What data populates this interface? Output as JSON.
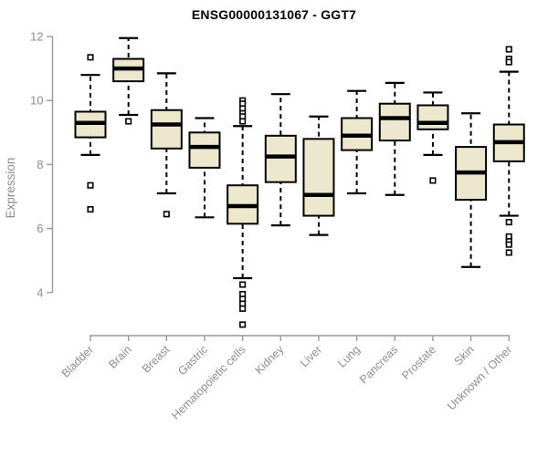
{
  "chart_data": {
    "type": "boxplot",
    "title": "ENSG00000131067 - GGT7",
    "ylabel": "Expression",
    "xlabel": "",
    "ylim": [
      4,
      12
    ],
    "yticks": [
      12,
      10,
      8,
      6,
      4
    ],
    "grid": false,
    "legend": false,
    "label_rotation_deg": 45,
    "categories": [
      "Bladder",
      "Brain",
      "Breast",
      "Gastric",
      "Hematopoietic cells",
      "Kidney",
      "Liver",
      "Lung",
      "Pancreas",
      "Prostate",
      "Skin",
      "Unknown / Other"
    ],
    "boxes": [
      {
        "category": "Bladder",
        "whisker_low": 8.3,
        "q1": 8.85,
        "median": 9.3,
        "q3": 9.65,
        "whisker_high": 10.8,
        "outliers": [
          11.35,
          7.35,
          6.6
        ]
      },
      {
        "category": "Brain",
        "whisker_low": 9.55,
        "q1": 10.6,
        "median": 11.0,
        "q3": 11.3,
        "whisker_high": 11.95,
        "outliers": [
          9.35
        ]
      },
      {
        "category": "Breast",
        "whisker_low": 7.1,
        "q1": 8.5,
        "median": 9.25,
        "q3": 9.7,
        "whisker_high": 10.85,
        "outliers": [
          6.45
        ]
      },
      {
        "category": "Gastric",
        "whisker_low": 6.35,
        "q1": 7.9,
        "median": 8.55,
        "q3": 9.0,
        "whisker_high": 9.45,
        "outliers": []
      },
      {
        "category": "Hematopoietic cells",
        "whisker_low": 4.45,
        "q1": 6.15,
        "median": 6.7,
        "q3": 7.35,
        "whisker_high": 9.2,
        "outliers": [
          10.0,
          9.9,
          9.75,
          9.6,
          9.5,
          9.35,
          4.25,
          3.95,
          3.8,
          3.65,
          3.5,
          3.0
        ]
      },
      {
        "category": "Kidney",
        "whisker_low": 6.1,
        "q1": 7.45,
        "median": 8.25,
        "q3": 8.9,
        "whisker_high": 10.2,
        "outliers": []
      },
      {
        "category": "Liver",
        "whisker_low": 5.8,
        "q1": 6.4,
        "median": 7.05,
        "q3": 8.8,
        "whisker_high": 9.5,
        "outliers": []
      },
      {
        "category": "Lung",
        "whisker_low": 7.1,
        "q1": 8.45,
        "median": 8.9,
        "q3": 9.45,
        "whisker_high": 10.3,
        "outliers": []
      },
      {
        "category": "Pancreas",
        "whisker_low": 7.05,
        "q1": 8.75,
        "median": 9.45,
        "q3": 9.9,
        "whisker_high": 10.55,
        "outliers": []
      },
      {
        "category": "Prostate",
        "whisker_low": 8.3,
        "q1": 9.1,
        "median": 9.3,
        "q3": 9.85,
        "whisker_high": 10.25,
        "outliers": [
          7.5
        ]
      },
      {
        "category": "Skin",
        "whisker_low": 4.8,
        "q1": 6.9,
        "median": 7.75,
        "q3": 8.55,
        "whisker_high": 9.6,
        "outliers": []
      },
      {
        "category": "Unknown / Other",
        "whisker_low": 6.4,
        "q1": 8.1,
        "median": 8.7,
        "q3": 9.25,
        "whisker_high": 10.9,
        "outliers": [
          11.6,
          11.3,
          11.2,
          6.2,
          5.75,
          5.6,
          5.5,
          5.25
        ]
      }
    ],
    "colors": {
      "background": "#FFFFFF",
      "box_fill": "#EDE7CE",
      "box_stroke": "#000000",
      "median": "#000000",
      "whisker": "#000000",
      "outlier_stroke": "#000000",
      "outlier_fill": "#FFFFFF",
      "axis": "#9A9A9A",
      "tick_label": "#8E8E8E",
      "title": "#000000"
    }
  }
}
